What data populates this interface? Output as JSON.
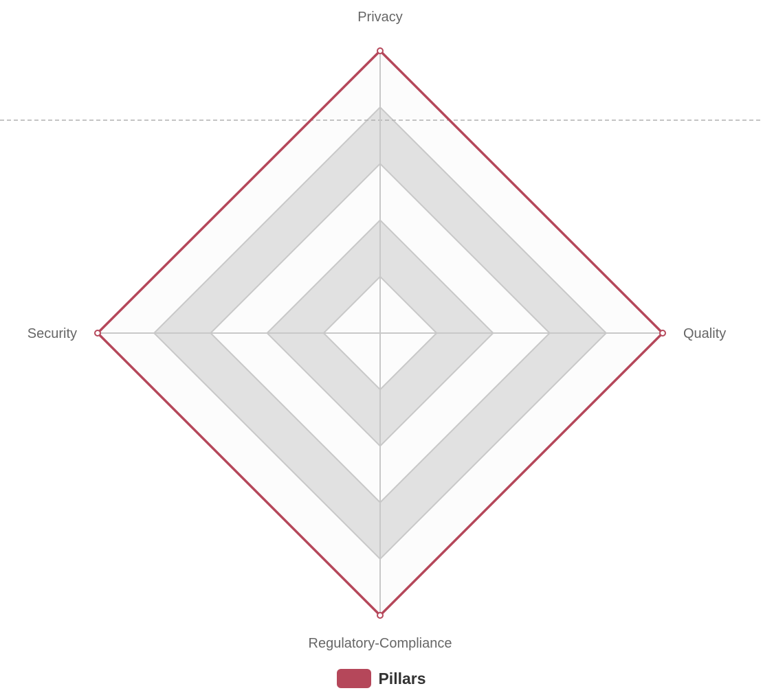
{
  "chart_data": {
    "type": "radar",
    "categories": [
      "Privacy",
      "Quality",
      "Regulatory-Compliance",
      "Security"
    ],
    "series": [
      {
        "name": "Pillars",
        "values": [
          5,
          5,
          5,
          5
        ],
        "color": "#b5475a"
      }
    ],
    "rlim": [
      0,
      5
    ],
    "ring_count": 5,
    "grid": true,
    "legend_position": "bottom",
    "colors": {
      "band_light": "#fcfcfc",
      "band_dark": "#e1e1e1",
      "grid_line": "#c8c8c8",
      "label": "#666666",
      "reference_line": "#b0b0b0"
    }
  },
  "legend": {
    "items": [
      {
        "label": "Pillars",
        "color": "#b5475a"
      }
    ]
  }
}
